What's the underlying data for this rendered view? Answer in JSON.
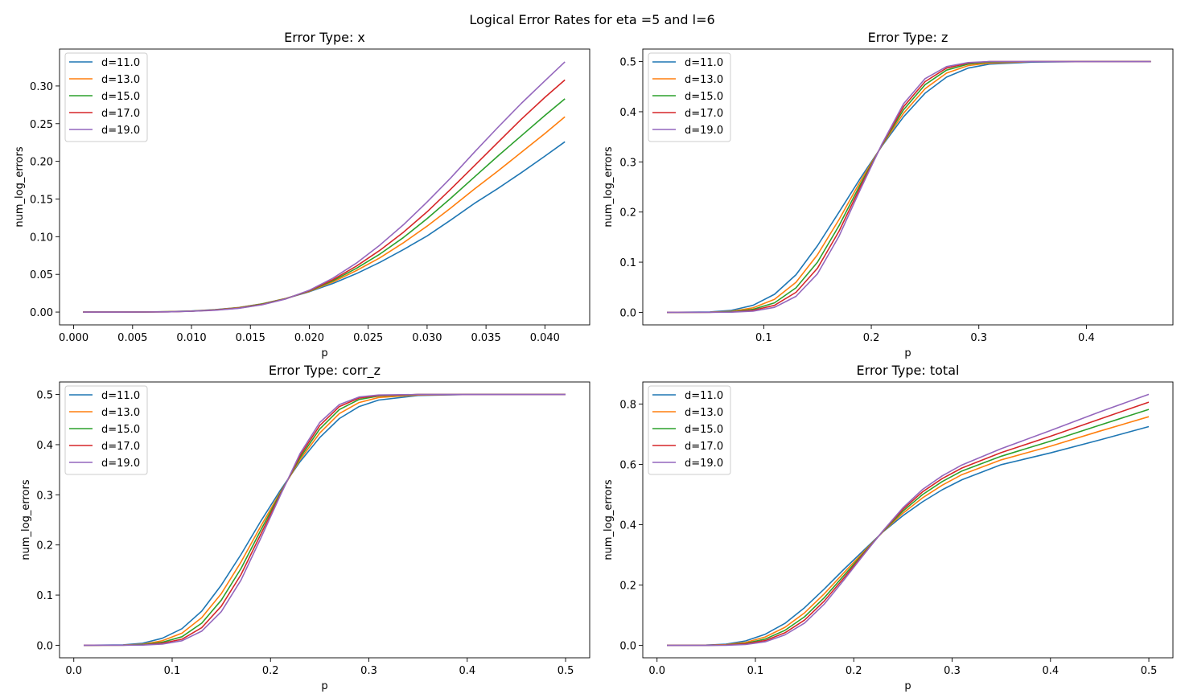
{
  "figure": {
    "title": "Logical Error Rates for eta =5 and l=6"
  },
  "series_colors": [
    "#1f77b4",
    "#ff7f0e",
    "#2ca02c",
    "#d62728",
    "#9467bd"
  ],
  "chart_data": [
    {
      "type": "line",
      "title": "Error Type: x",
      "xlabel": "p",
      "ylabel": "num_log_errors",
      "xlim": [
        -0.0012,
        0.0438
      ],
      "ylim": [
        -0.017,
        0.349
      ],
      "xticks": [
        0.0,
        0.005,
        0.01,
        0.015,
        0.02,
        0.025,
        0.03,
        0.035,
        0.04
      ],
      "xtick_labels": [
        "0.000",
        "0.005",
        "0.010",
        "0.015",
        "0.020",
        "0.025",
        "0.030",
        "0.035",
        "0.040"
      ],
      "yticks": [
        0.0,
        0.05,
        0.1,
        0.15,
        0.2,
        0.25,
        0.3
      ],
      "ytick_labels": [
        "0.00",
        "0.05",
        "0.10",
        "0.15",
        "0.20",
        "0.25",
        "0.30"
      ],
      "legend_position": "top-left",
      "x": [
        0.0008,
        0.002,
        0.004,
        0.006,
        0.008,
        0.01,
        0.012,
        0.014,
        0.016,
        0.018,
        0.02,
        0.022,
        0.024,
        0.026,
        0.028,
        0.03,
        0.032,
        0.034,
        0.036,
        0.038,
        0.04,
        0.0417
      ],
      "series": [
        {
          "name": "d=11.0",
          "values": [
            0,
            0,
            0,
            0.0002,
            0.0006,
            0.0015,
            0.0032,
            0.006,
            0.011,
            0.018,
            0.027,
            0.038,
            0.051,
            0.066,
            0.083,
            0.101,
            0.122,
            0.144,
            0.164,
            0.185,
            0.207,
            0.226
          ]
        },
        {
          "name": "d=13.0",
          "values": [
            0,
            0,
            0,
            0.0001,
            0.0005,
            0.0013,
            0.003,
            0.0058,
            0.0108,
            0.018,
            0.0275,
            0.04,
            0.055,
            0.072,
            0.092,
            0.114,
            0.138,
            0.163,
            0.187,
            0.212,
            0.237,
            0.259
          ]
        },
        {
          "name": "d=15.0",
          "values": [
            0,
            0,
            0,
            0.0001,
            0.0004,
            0.0012,
            0.0028,
            0.0055,
            0.0105,
            0.0178,
            0.028,
            0.0415,
            0.058,
            0.077,
            0.099,
            0.124,
            0.151,
            0.179,
            0.207,
            0.234,
            0.261,
            0.283
          ]
        },
        {
          "name": "d=17.0",
          "values": [
            0,
            0,
            0,
            0.0001,
            0.0003,
            0.0011,
            0.0026,
            0.0052,
            0.01,
            0.0176,
            0.0285,
            0.043,
            0.061,
            0.082,
            0.106,
            0.133,
            0.163,
            0.194,
            0.225,
            0.256,
            0.285,
            0.308
          ]
        },
        {
          "name": "d=19.0",
          "values": [
            0,
            0,
            0,
            0.0001,
            0.0003,
            0.001,
            0.0024,
            0.005,
            0.0097,
            0.0174,
            0.029,
            0.045,
            0.065,
            0.089,
            0.116,
            0.146,
            0.178,
            0.212,
            0.245,
            0.277,
            0.307,
            0.332
          ]
        }
      ]
    },
    {
      "type": "line",
      "title": "Error Type: z",
      "xlabel": "p",
      "ylabel": "num_log_errors",
      "xlim": [
        -0.0125,
        0.4805
      ],
      "ylim": [
        -0.025,
        0.525
      ],
      "xticks": [
        0.1,
        0.2,
        0.3,
        0.4
      ],
      "xtick_labels": [
        "0.1",
        "0.2",
        "0.3",
        "0.4"
      ],
      "yticks": [
        0.0,
        0.1,
        0.2,
        0.3,
        0.4,
        0.5
      ],
      "ytick_labels": [
        "0.0",
        "0.1",
        "0.2",
        "0.3",
        "0.4",
        "0.5"
      ],
      "legend_position": "top-left",
      "x": [
        0.01,
        0.05,
        0.07,
        0.09,
        0.11,
        0.13,
        0.15,
        0.17,
        0.19,
        0.21,
        0.23,
        0.25,
        0.27,
        0.29,
        0.31,
        0.35,
        0.4,
        0.46
      ],
      "series": [
        {
          "name": "d=11.0",
          "values": [
            0,
            0.0008,
            0.004,
            0.014,
            0.036,
            0.075,
            0.133,
            0.2,
            0.268,
            0.332,
            0.39,
            0.437,
            0.469,
            0.487,
            0.495,
            0.499,
            0.5,
            0.5
          ]
        },
        {
          "name": "d=13.0",
          "values": [
            0,
            0.0004,
            0.002,
            0.009,
            0.026,
            0.06,
            0.115,
            0.185,
            0.262,
            0.333,
            0.397,
            0.446,
            0.477,
            0.492,
            0.497,
            0.5,
            0.5,
            0.5
          ]
        },
        {
          "name": "d=15.0",
          "values": [
            0,
            0.0002,
            0.0012,
            0.006,
            0.019,
            0.049,
            0.1,
            0.173,
            0.256,
            0.334,
            0.404,
            0.454,
            0.483,
            0.495,
            0.499,
            0.5,
            0.5,
            0.5
          ]
        },
        {
          "name": "d=17.0",
          "values": [
            0,
            0.0001,
            0.0007,
            0.004,
            0.014,
            0.04,
            0.088,
            0.162,
            0.251,
            0.335,
            0.41,
            0.46,
            0.487,
            0.497,
            0.5,
            0.5,
            0.5,
            0.5
          ]
        },
        {
          "name": "d=19.0",
          "values": [
            0,
            0.0001,
            0.0004,
            0.0025,
            0.01,
            0.032,
            0.077,
            0.152,
            0.246,
            0.336,
            0.416,
            0.466,
            0.49,
            0.498,
            0.5,
            0.5,
            0.5,
            0.5
          ]
        }
      ]
    },
    {
      "type": "line",
      "title": "Error Type: corr_z",
      "xlabel": "p",
      "ylabel": "num_log_errors",
      "xlim": [
        -0.0145,
        0.5245
      ],
      "ylim": [
        -0.025,
        0.525
      ],
      "xticks": [
        0.0,
        0.1,
        0.2,
        0.3,
        0.4,
        0.5
      ],
      "xtick_labels": [
        "0.0",
        "0.1",
        "0.2",
        "0.3",
        "0.4",
        "0.5"
      ],
      "yticks": [
        0.0,
        0.1,
        0.2,
        0.3,
        0.4,
        0.5
      ],
      "ytick_labels": [
        "0.0",
        "0.1",
        "0.2",
        "0.3",
        "0.4",
        "0.5"
      ],
      "legend_position": "top-left",
      "x": [
        0.01,
        0.05,
        0.07,
        0.09,
        0.11,
        0.13,
        0.15,
        0.17,
        0.19,
        0.21,
        0.23,
        0.25,
        0.27,
        0.29,
        0.31,
        0.35,
        0.4,
        0.45,
        0.5
      ],
      "series": [
        {
          "name": "d=11.0",
          "values": [
            0,
            0.0008,
            0.004,
            0.014,
            0.033,
            0.068,
            0.12,
            0.181,
            0.247,
            0.309,
            0.366,
            0.414,
            0.452,
            0.476,
            0.489,
            0.498,
            0.5,
            0.5,
            0.5
          ]
        },
        {
          "name": "d=13.0",
          "values": [
            0,
            0.0004,
            0.002,
            0.009,
            0.024,
            0.055,
            0.103,
            0.166,
            0.237,
            0.305,
            0.37,
            0.423,
            0.462,
            0.484,
            0.494,
            0.499,
            0.5,
            0.5,
            0.5
          ]
        },
        {
          "name": "d=15.0",
          "values": [
            0,
            0.0002,
            0.0012,
            0.006,
            0.017,
            0.044,
            0.09,
            0.153,
            0.229,
            0.303,
            0.374,
            0.431,
            0.47,
            0.49,
            0.497,
            0.5,
            0.5,
            0.5,
            0.5
          ]
        },
        {
          "name": "d=17.0",
          "values": [
            0,
            0.0001,
            0.0007,
            0.004,
            0.012,
            0.035,
            0.078,
            0.141,
            0.221,
            0.301,
            0.378,
            0.438,
            0.476,
            0.493,
            0.498,
            0.5,
            0.5,
            0.5,
            0.5
          ]
        },
        {
          "name": "d=19.0",
          "values": [
            0,
            0.0001,
            0.0004,
            0.0025,
            0.009,
            0.028,
            0.067,
            0.13,
            0.213,
            0.299,
            0.382,
            0.444,
            0.48,
            0.495,
            0.499,
            0.5,
            0.5,
            0.5,
            0.5
          ]
        }
      ]
    },
    {
      "type": "line",
      "title": "Error Type: total",
      "xlabel": "p",
      "ylabel": "num_log_errors",
      "xlim": [
        -0.0145,
        0.5245
      ],
      "ylim": [
        -0.041,
        0.873
      ],
      "xticks": [
        0.0,
        0.1,
        0.2,
        0.3,
        0.4,
        0.5
      ],
      "xtick_labels": [
        "0.0",
        "0.1",
        "0.2",
        "0.3",
        "0.4",
        "0.5"
      ],
      "yticks": [
        0.0,
        0.2,
        0.4,
        0.6,
        0.8
      ],
      "ytick_labels": [
        "0.0",
        "0.2",
        "0.4",
        "0.6",
        "0.8"
      ],
      "legend_position": "top-left",
      "x": [
        0.01,
        0.05,
        0.07,
        0.09,
        0.11,
        0.13,
        0.15,
        0.17,
        0.19,
        0.21,
        0.23,
        0.25,
        0.27,
        0.29,
        0.31,
        0.35,
        0.4,
        0.45,
        0.5
      ],
      "series": [
        {
          "name": "d=11.0",
          "values": [
            0,
            0.001,
            0.004,
            0.015,
            0.037,
            0.073,
            0.125,
            0.187,
            0.252,
            0.315,
            0.377,
            0.43,
            0.476,
            0.516,
            0.549,
            0.599,
            0.638,
            0.681,
            0.725
          ]
        },
        {
          "name": "d=13.0",
          "values": [
            0,
            0.0005,
            0.0025,
            0.01,
            0.028,
            0.06,
            0.108,
            0.171,
            0.241,
            0.31,
            0.378,
            0.438,
            0.489,
            0.531,
            0.566,
            0.615,
            0.66,
            0.71,
            0.758
          ]
        },
        {
          "name": "d=15.0",
          "values": [
            0,
            0.0003,
            0.0015,
            0.007,
            0.021,
            0.05,
            0.095,
            0.158,
            0.232,
            0.306,
            0.379,
            0.445,
            0.5,
            0.543,
            0.578,
            0.627,
            0.677,
            0.73,
            0.782
          ]
        },
        {
          "name": "d=17.0",
          "values": [
            0,
            0.0002,
            0.001,
            0.005,
            0.016,
            0.042,
            0.084,
            0.147,
            0.224,
            0.303,
            0.38,
            0.451,
            0.509,
            0.553,
            0.588,
            0.639,
            0.693,
            0.75,
            0.806
          ]
        },
        {
          "name": "d=19.0",
          "values": [
            0,
            0.0001,
            0.0006,
            0.003,
            0.012,
            0.035,
            0.074,
            0.137,
            0.217,
            0.3,
            0.381,
            0.456,
            0.517,
            0.562,
            0.598,
            0.652,
            0.712,
            0.774,
            0.832
          ]
        }
      ]
    }
  ]
}
